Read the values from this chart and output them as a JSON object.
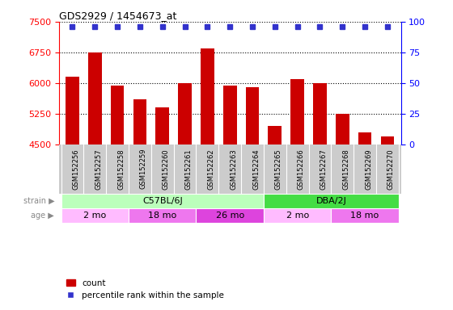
{
  "title": "GDS2929 / 1454673_at",
  "samples": [
    "GSM152256",
    "GSM152257",
    "GSM152258",
    "GSM152259",
    "GSM152260",
    "GSM152261",
    "GSM152262",
    "GSM152263",
    "GSM152264",
    "GSM152265",
    "GSM152266",
    "GSM152267",
    "GSM152268",
    "GSM152269",
    "GSM152270"
  ],
  "counts": [
    6150,
    6750,
    5950,
    5600,
    5400,
    6000,
    6850,
    5950,
    5900,
    4950,
    6100,
    6000,
    5250,
    4800,
    4700
  ],
  "bar_color": "#cc0000",
  "dot_color": "#3333cc",
  "ylim_left": [
    4500,
    7500
  ],
  "ylim_right": [
    0,
    100
  ],
  "yticks_left": [
    4500,
    5250,
    6000,
    6750,
    7500
  ],
  "yticks_right": [
    0,
    25,
    50,
    75,
    100
  ],
  "strain_groups": [
    {
      "label": "C57BL/6J",
      "start": 0,
      "end": 9,
      "color": "#bbffbb"
    },
    {
      "label": "DBA/2J",
      "start": 9,
      "end": 15,
      "color": "#44dd44"
    }
  ],
  "age_groups": [
    {
      "label": "2 mo",
      "start": 0,
      "end": 3,
      "color": "#ffbbff"
    },
    {
      "label": "18 mo",
      "start": 3,
      "end": 6,
      "color": "#ee77ee"
    },
    {
      "label": "26 mo",
      "start": 6,
      "end": 9,
      "color": "#dd44dd"
    },
    {
      "label": "2 mo",
      "start": 9,
      "end": 12,
      "color": "#ffbbff"
    },
    {
      "label": "18 mo",
      "start": 12,
      "end": 15,
      "color": "#ee77ee"
    }
  ],
  "tick_area_bg": "#cccccc",
  "bg_color": "#ffffff",
  "left_label_color": "#888888",
  "legend_items": [
    {
      "type": "square",
      "color": "#cc0000",
      "label": "count"
    },
    {
      "type": "square",
      "color": "#3333cc",
      "label": "percentile rank within the sample"
    }
  ]
}
